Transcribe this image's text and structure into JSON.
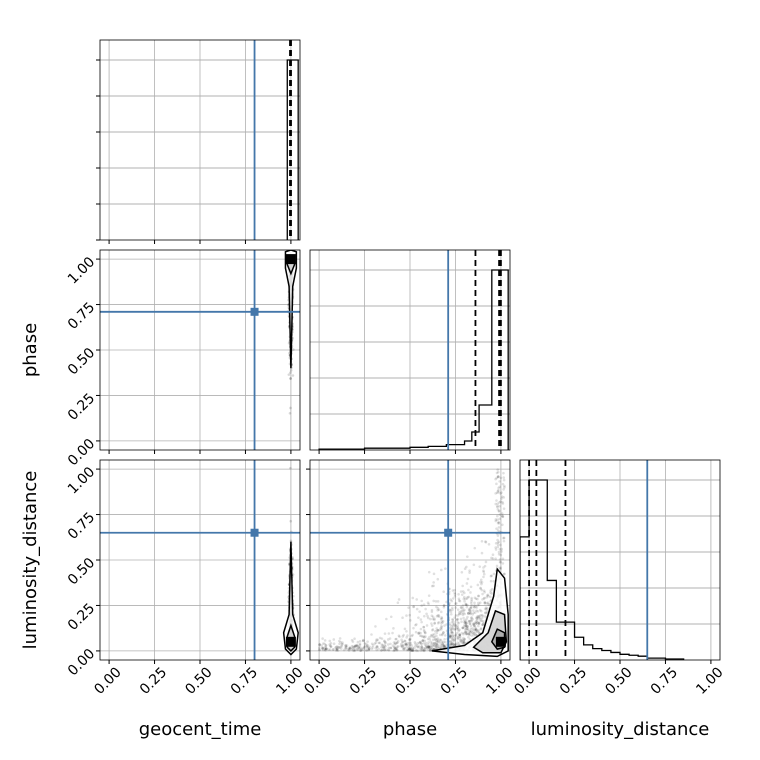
{
  "chart_data": {
    "type": "corner",
    "parameters": [
      "geocent_time",
      "phase",
      "luminosity_distance"
    ],
    "axis_labels": {
      "bottom": [
        "geocent_time",
        "phase",
        "luminosity_distance"
      ],
      "left": [
        "phase",
        "luminosity_distance"
      ]
    },
    "ticks": [
      0.0,
      0.25,
      0.5,
      0.75,
      1.0
    ],
    "tick_labels": [
      "0.00",
      "0.25",
      "0.50",
      "0.75",
      "1.00"
    ],
    "xlim": [
      -0.05,
      1.05
    ],
    "ylim": [
      -0.05,
      1.05
    ],
    "grid": true,
    "colors": {
      "truth": "#4477aa",
      "samples": "#000000",
      "grid": "#b0b0b0"
    },
    "truths": {
      "geocent_time": 0.8,
      "phase": 0.71,
      "luminosity_distance": 0.65
    },
    "marginals": [
      {
        "parameter": "geocent_time",
        "quantiles": [
          0.995,
          1.0,
          1.0
        ],
        "bins": [
          0.98,
          1.04
        ],
        "counts": [
          1.0
        ]
      },
      {
        "parameter": "phase",
        "quantiles": [
          0.86,
          0.99,
          1.0
        ],
        "bins": [
          0.0,
          0.25,
          0.5,
          0.6,
          0.7,
          0.8,
          0.84,
          0.88,
          0.92,
          0.95,
          0.98,
          1.04
        ],
        "counts": [
          0.005,
          0.01,
          0.015,
          0.02,
          0.03,
          0.05,
          0.1,
          0.25,
          0.25,
          1.0,
          1.0
        ]
      },
      {
        "parameter": "luminosity_distance",
        "quantiles": [
          0.0,
          0.04,
          0.2
        ],
        "bins": [
          -0.05,
          0.0,
          0.05,
          0.1,
          0.15,
          0.2,
          0.25,
          0.3,
          0.35,
          0.4,
          0.45,
          0.5,
          0.55,
          0.6,
          0.65,
          0.75,
          0.85
        ],
        "counts": [
          0.65,
          0.95,
          0.95,
          0.42,
          0.2,
          0.2,
          0.12,
          0.08,
          0.06,
          0.05,
          0.04,
          0.03,
          0.025,
          0.02,
          0.01,
          0.005
        ]
      }
    ],
    "pairs": [
      {
        "x": "geocent_time",
        "y": "phase",
        "density_center": [
          1.0,
          1.0
        ],
        "contours": [
          [
            [
              1.0,
              0.4
            ],
            [
              1.01,
              0.85
            ],
            [
              1.03,
              0.95
            ],
            [
              1.03,
              1.04
            ],
            [
              1.0,
              1.05
            ],
            [
              0.97,
              1.04
            ],
            [
              0.97,
              0.95
            ],
            [
              0.99,
              0.85
            ]
          ],
          [
            [
              1.0,
              0.92
            ],
            [
              1.02,
              0.97
            ],
            [
              1.01,
              1.02
            ],
            [
              0.99,
              1.02
            ],
            [
              0.98,
              0.97
            ]
          ]
        ]
      },
      {
        "x": "geocent_time",
        "y": "luminosity_distance",
        "density_center": [
          1.0,
          0.05
        ],
        "contours": [
          [
            [
              1.0,
              0.6
            ],
            [
              1.01,
              0.2
            ],
            [
              1.04,
              0.1
            ],
            [
              1.03,
              0.01
            ],
            [
              1.0,
              -0.02
            ],
            [
              0.97,
              0.01
            ],
            [
              0.96,
              0.1
            ],
            [
              0.99,
              0.2
            ]
          ],
          [
            [
              1.0,
              0.14
            ],
            [
              1.02,
              0.08
            ],
            [
              1.02,
              0.02
            ],
            [
              1.0,
              0.0
            ],
            [
              0.98,
              0.02
            ],
            [
              0.98,
              0.08
            ]
          ]
        ]
      },
      {
        "x": "phase",
        "y": "luminosity_distance",
        "density_center": [
          1.0,
          0.05
        ],
        "contours": [
          [
            [
              0.62,
              0.0
            ],
            [
              0.8,
              0.03
            ],
            [
              0.9,
              0.1
            ],
            [
              0.96,
              0.3
            ],
            [
              0.98,
              0.45
            ],
            [
              1.02,
              0.4
            ],
            [
              1.04,
              0.2
            ],
            [
              1.04,
              0.0
            ],
            [
              0.98,
              -0.03
            ],
            [
              0.8,
              -0.02
            ]
          ],
          [
            [
              0.85,
              0.02
            ],
            [
              0.93,
              0.1
            ],
            [
              0.97,
              0.22
            ],
            [
              1.02,
              0.2
            ],
            [
              1.03,
              0.05
            ],
            [
              1.0,
              -0.01
            ],
            [
              0.9,
              -0.01
            ]
          ],
          [
            [
              0.95,
              0.05
            ],
            [
              0.98,
              0.12
            ],
            [
              1.02,
              0.1
            ],
            [
              1.02,
              0.02
            ],
            [
              0.98,
              0.01
            ]
          ]
        ]
      }
    ]
  }
}
